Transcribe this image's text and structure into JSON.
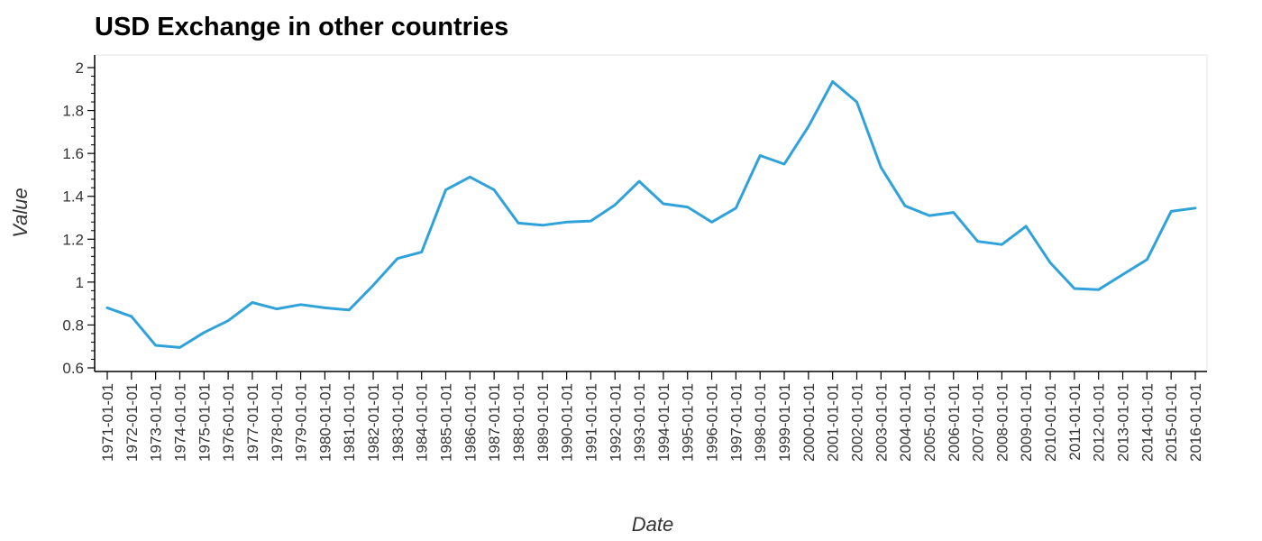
{
  "chart_data": {
    "type": "line",
    "title": "USD Exchange in other countries",
    "xlabel": "Date",
    "ylabel": "Value",
    "ylim": [
      0.6,
      2.0
    ],
    "y_ticks": [
      0.6,
      0.8,
      1,
      1.2,
      1.4,
      1.6,
      1.8,
      2
    ],
    "y_tick_labels": [
      "0.6",
      "0.8",
      "1",
      "1.2",
      "1.4",
      "1.6",
      "1.8",
      "2"
    ],
    "grid": false,
    "line_color": "#30a2da",
    "x": [
      "1971-01-01",
      "1972-01-01",
      "1973-01-01",
      "1974-01-01",
      "1975-01-01",
      "1976-01-01",
      "1977-01-01",
      "1978-01-01",
      "1979-01-01",
      "1980-01-01",
      "1981-01-01",
      "1982-01-01",
      "1983-01-01",
      "1984-01-01",
      "1985-01-01",
      "1986-01-01",
      "1987-01-01",
      "1988-01-01",
      "1989-01-01",
      "1990-01-01",
      "1991-01-01",
      "1992-01-01",
      "1993-01-01",
      "1994-01-01",
      "1995-01-01",
      "1996-01-01",
      "1997-01-01",
      "1998-01-01",
      "1999-01-01",
      "2000-01-01",
      "2001-01-01",
      "2002-01-01",
      "2003-01-01",
      "2004-01-01",
      "2005-01-01",
      "2006-01-01",
      "2007-01-01",
      "2008-01-01",
      "2009-01-01",
      "2010-01-01",
      "2011-01-01",
      "2012-01-01",
      "2013-01-01",
      "2014-01-01",
      "2015-01-01",
      "2016-01-01"
    ],
    "values": [
      0.88,
      0.84,
      0.705,
      0.695,
      0.765,
      0.82,
      0.905,
      0.875,
      0.895,
      0.88,
      0.87,
      0.985,
      1.11,
      1.14,
      1.43,
      1.49,
      1.43,
      1.275,
      1.265,
      1.28,
      1.285,
      1.36,
      1.47,
      1.365,
      1.35,
      1.28,
      1.345,
      1.59,
      1.55,
      1.725,
      1.935,
      1.84,
      1.535,
      1.355,
      1.31,
      1.325,
      1.19,
      1.175,
      1.26,
      1.09,
      0.97,
      0.965,
      1.035,
      1.105,
      1.33,
      1.345
    ]
  }
}
